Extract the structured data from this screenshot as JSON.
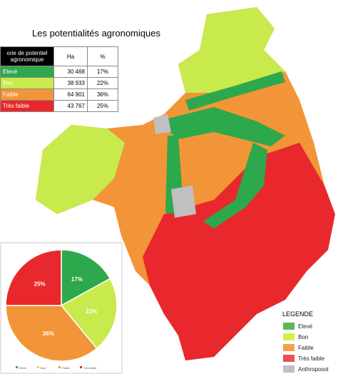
{
  "title": "Les potentialités agronomiques",
  "table": {
    "header": [
      "orie de potentiel agronomique",
      "Ha",
      "%"
    ],
    "rows": [
      [
        "Elevé",
        "30 468",
        "17%"
      ],
      [
        "Bon",
        "38 933",
        "22%"
      ],
      [
        "Faible",
        "64 901",
        "36%"
      ],
      [
        "Très faible",
        "43 767",
        "25%"
      ]
    ]
  },
  "chart_data": {
    "type": "pie",
    "categories": [
      "Elevé",
      "Bon",
      "Faible",
      "Très faible"
    ],
    "values": [
      17,
      22,
      36,
      25
    ],
    "value_labels": [
      "17%",
      "22%",
      "36%",
      "25%"
    ],
    "colors": [
      "#2ea84c",
      "#c8ea4c",
      "#f29538",
      "#e8282c"
    ]
  },
  "legend": {
    "title": "LEGENDE",
    "items": [
      {
        "label": "Elevé",
        "color": "#5cb85c"
      },
      {
        "label": "Bon",
        "color": "#d4f04a"
      },
      {
        "label": "Faible",
        "color": "#f7a04a"
      },
      {
        "label": "Très faible",
        "color": "#e8505a"
      },
      {
        "label": "Anthroposol",
        "color": "#c0c0c0"
      }
    ]
  }
}
